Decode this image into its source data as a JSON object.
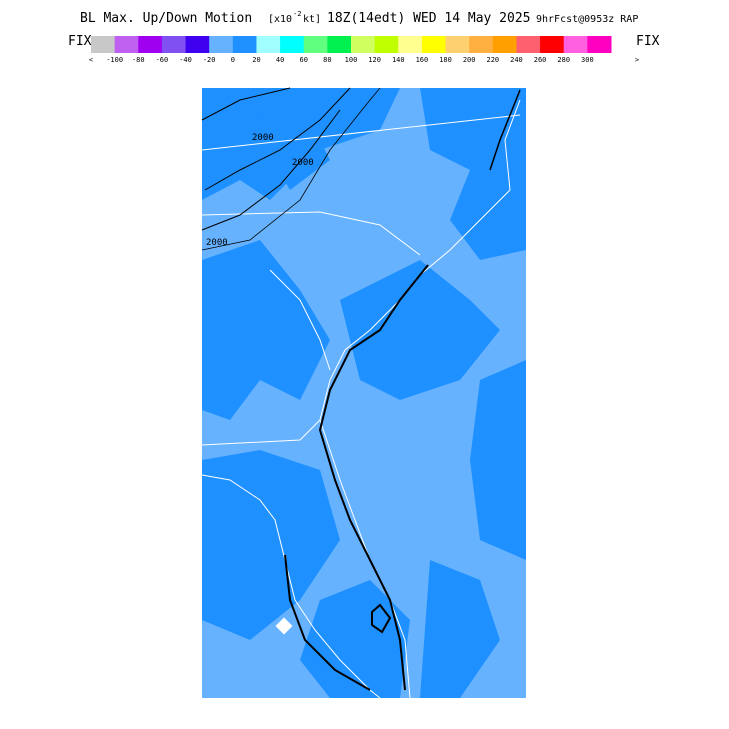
{
  "header": {
    "title": "BL Max. Up/Down Motion",
    "unit_prefix": "[x10",
    "unit_exp": "-2",
    "unit_suffix": "kt]",
    "valid": "18Z(14edt) WED 14 May 2025",
    "forecast": "9hrFcst@0953z RAP"
  },
  "legend": {
    "left": "FIX",
    "right": "FIX",
    "colors": [
      "#c8c8c8",
      "#c060f0",
      "#a000f0",
      "#8050f0",
      "#4000f0",
      "#66b2ff",
      "#1e90ff",
      "#a0ffff",
      "#00ffff",
      "#60ff80",
      "#00f050",
      "#d0ff60",
      "#c0ff00",
      "#ffff90",
      "#ffff00",
      "#ffd070",
      "#ffb040",
      "#ffa000",
      "#ff6070",
      "#ff0000",
      "#ff60e0",
      "#ff00c0"
    ],
    "labels": [
      "<",
      -100,
      -80,
      -60,
      -40,
      -20,
      0,
      20,
      40,
      60,
      80,
      100,
      120,
      140,
      160,
      180,
      200,
      220,
      240,
      260,
      280,
      300,
      ">"
    ]
  },
  "map": {
    "contour_labels": [
      "2000",
      "2000",
      "2000"
    ]
  }
}
